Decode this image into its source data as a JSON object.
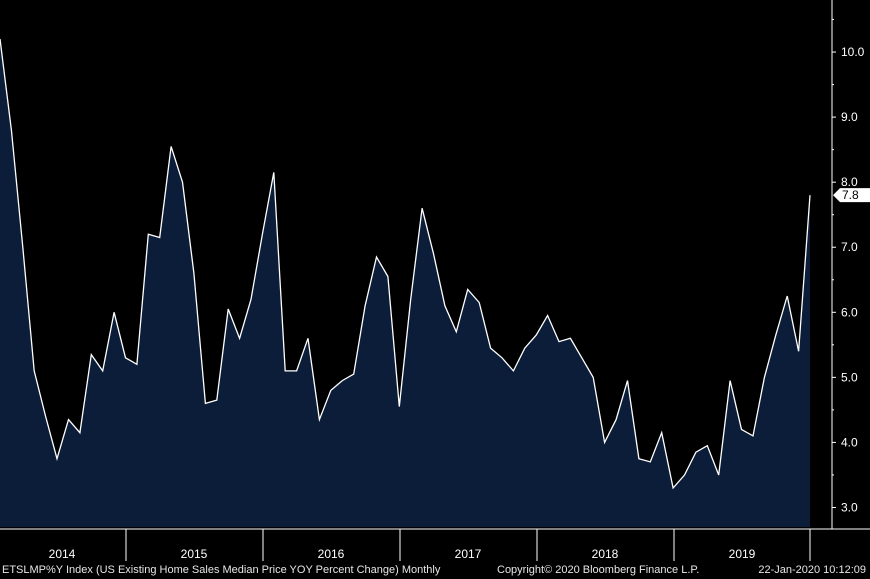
{
  "chart_data": {
    "type": "area",
    "title": "ETSLMP%Y Index (US Existing Home Sales Median Price YOY Percent Change)  Monthly",
    "frequency": "Monthly",
    "x_start": "2014-01",
    "x_end": "2019-12",
    "year_labels": [
      "2014",
      "2015",
      "2016",
      "2017",
      "2018",
      "2019"
    ],
    "y_ticks": [
      "3.0",
      "4.0",
      "5.0",
      "6.0",
      "7.0",
      "8.0",
      "9.0",
      "10.0"
    ],
    "ylim": [
      2.7,
      10.8
    ],
    "last_value_label": "7.8",
    "series": [
      {
        "values": [
          10.2,
          8.8,
          7.0,
          5.1,
          4.4,
          3.75,
          4.35,
          4.15,
          5.35,
          5.1,
          6.0,
          5.3,
          5.2,
          7.2,
          7.15,
          8.55,
          8.0,
          6.6,
          4.6,
          4.65,
          6.05,
          5.6,
          6.2,
          7.2,
          8.15,
          5.1,
          5.1,
          5.6,
          4.35,
          4.8,
          4.95,
          5.05,
          6.1,
          6.85,
          6.55,
          4.55,
          6.2,
          7.6,
          6.9,
          6.1,
          5.7,
          6.35,
          6.15,
          5.45,
          5.3,
          5.1,
          5.45,
          5.65,
          5.95,
          5.55,
          5.6,
          5.3,
          5.0,
          4.0,
          4.35,
          4.95,
          3.75,
          3.7,
          4.15,
          3.3,
          3.5,
          3.85,
          3.95,
          3.5,
          4.95,
          4.2,
          4.1,
          5.0,
          5.65,
          6.25,
          5.4,
          7.8
        ]
      }
    ]
  },
  "footer": {
    "title": "ETSLMP%Y Index (US Existing Home Sales Median Price YOY Percent Change)  Monthly",
    "copyright": "Copyright© 2020 Bloomberg Finance L.P.",
    "timestamp": "22-Jan-2020 10:12:09"
  },
  "colors": {
    "background": "#000000",
    "area_fill": "#0b1d39",
    "line": "#ffffff",
    "axis": "#ffffff"
  }
}
